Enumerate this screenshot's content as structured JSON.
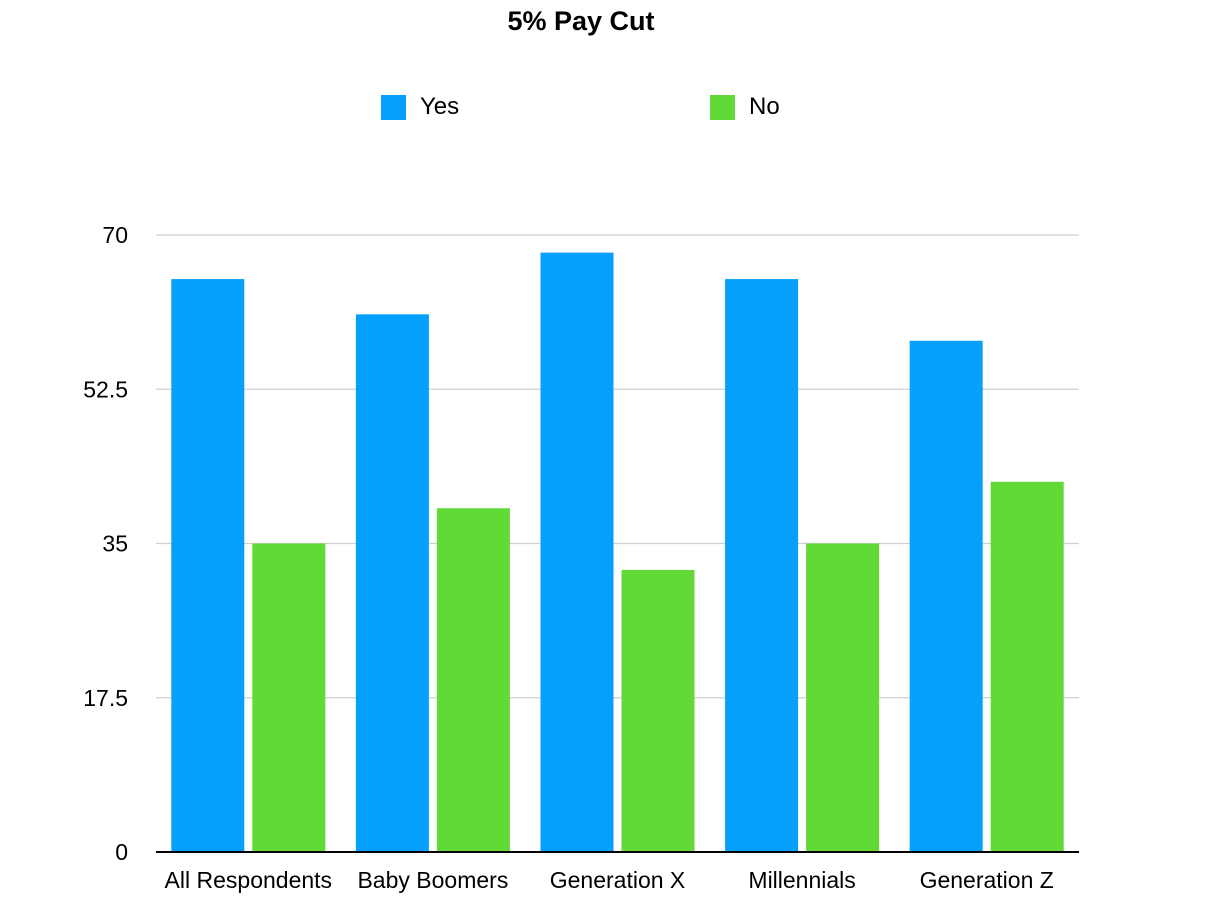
{
  "chart_data": {
    "type": "bar",
    "title": "5% Pay Cut",
    "xlabel": "",
    "ylabel": "",
    "categories": [
      "All Respondents",
      "Baby Boomers",
      "Generation X",
      "Millennials",
      "Generation Z"
    ],
    "series": [
      {
        "name": "Yes",
        "color": "#04A0FB",
        "values": [
          65,
          61,
          68,
          65,
          58
        ]
      },
      {
        "name": "No",
        "color": "#61D937",
        "values": [
          35,
          39,
          32,
          35,
          42
        ]
      }
    ],
    "ylim": [
      0,
      70
    ],
    "yticks": [
      "0",
      "17.5",
      "35",
      "52.5",
      "70"
    ],
    "grid": true,
    "legend_position": "top"
  }
}
